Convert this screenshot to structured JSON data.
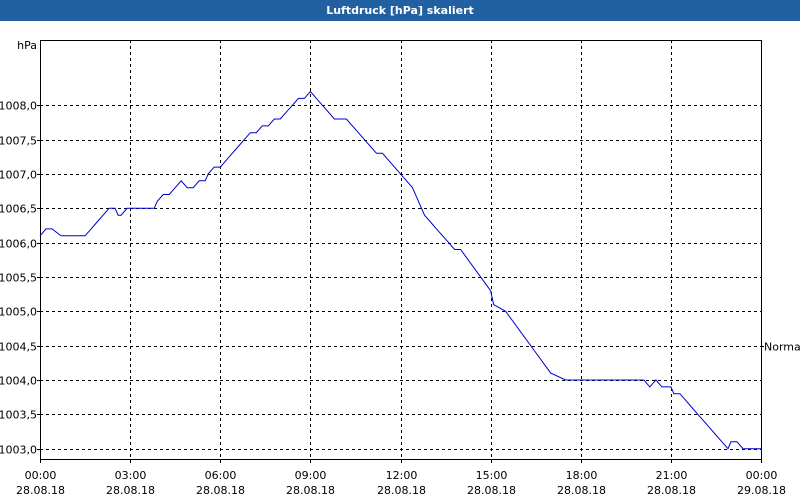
{
  "window": {
    "title": "Luftdruck [hPa] skaliert"
  },
  "chart_data": {
    "type": "line",
    "title": "Luftdruck [hPa] skaliert",
    "ylabel": "hPa",
    "xlabel": "",
    "ylim": [
      1002.85,
      1008.95
    ],
    "xlim": [
      0,
      24
    ],
    "yticks": [
      {
        "value": 1003.0,
        "label": "1003,0"
      },
      {
        "value": 1003.5,
        "label": "1003,5"
      },
      {
        "value": 1004.0,
        "label": "1004,0"
      },
      {
        "value": 1004.5,
        "label": "1004,5"
      },
      {
        "value": 1005.0,
        "label": "1005,0"
      },
      {
        "value": 1005.5,
        "label": "1005,5"
      },
      {
        "value": 1006.0,
        "label": "1006,0"
      },
      {
        "value": 1006.5,
        "label": "1006,5"
      },
      {
        "value": 1007.0,
        "label": "1007,0"
      },
      {
        "value": 1007.5,
        "label": "1007,5"
      },
      {
        "value": 1008.0,
        "label": "1008,0"
      }
    ],
    "xticks": [
      {
        "value": 0,
        "time": "00:00",
        "date": "28.08.18"
      },
      {
        "value": 3,
        "time": "03:00",
        "date": "28.08.18"
      },
      {
        "value": 6,
        "time": "06:00",
        "date": "28.08.18"
      },
      {
        "value": 9,
        "time": "09:00",
        "date": "28.08.18"
      },
      {
        "value": 12,
        "time": "12:00",
        "date": "28.08.18"
      },
      {
        "value": 15,
        "time": "15:00",
        "date": "28.08.18"
      },
      {
        "value": 18,
        "time": "18:00",
        "date": "28.08.18"
      },
      {
        "value": 21,
        "time": "21:00",
        "date": "28.08.18"
      },
      {
        "value": 24,
        "time": "00:00",
        "date": "29.08.18"
      }
    ],
    "grid": true,
    "reference": {
      "label": "Normal",
      "value": 1004.5
    },
    "series": [
      {
        "color": "#0000cc",
        "x": [
          0,
          0.2,
          0.4,
          0.7,
          0.8,
          1.5,
          1.7,
          1.9,
          2.1,
          2.3,
          2.5,
          2.6,
          2.7,
          2.9,
          3.0,
          3.2,
          3.4,
          3.6,
          3.8,
          3.9,
          4.1,
          4.3,
          4.5,
          4.7,
          4.9,
          5.1,
          5.3,
          5.5,
          5.6,
          5.8,
          6.0,
          6.2,
          6.4,
          6.6,
          6.8,
          7.0,
          7.2,
          7.4,
          7.6,
          7.8,
          8.0,
          8.2,
          8.4,
          8.6,
          8.8,
          9.0,
          9.2,
          9.4,
          9.6,
          9.8,
          10.0,
          10.2,
          10.4,
          10.6,
          10.8,
          11.0,
          11.2,
          11.4,
          11.6,
          11.8,
          12.0,
          12.2,
          12.4,
          12.6,
          12.8,
          13.0,
          13.2,
          13.4,
          13.6,
          13.8,
          14.0,
          14.5,
          15.0,
          15.1,
          15.5,
          16.0,
          16.5,
          17.0,
          17.5,
          18.0,
          18.5,
          19.0,
          19.5,
          20.0,
          20.1,
          20.3,
          20.5,
          20.7,
          20.9,
          21.0,
          21.1,
          21.3,
          21.5,
          21.7,
          21.9,
          22.1,
          22.3,
          22.5,
          22.7,
          22.9,
          23.0,
          23.2,
          23.4,
          23.6,
          23.8,
          24.0
        ],
        "values": [
          1006.1,
          1006.2,
          1006.2,
          1006.1,
          1006.1,
          1006.1,
          1006.2,
          1006.3,
          1006.4,
          1006.5,
          1006.5,
          1006.4,
          1006.4,
          1006.5,
          1006.5,
          1006.5,
          1006.5,
          1006.5,
          1006.5,
          1006.6,
          1006.7,
          1006.7,
          1006.8,
          1006.9,
          1006.8,
          1006.8,
          1006.9,
          1006.9,
          1007.0,
          1007.1,
          1007.1,
          1007.2,
          1007.3,
          1007.4,
          1007.5,
          1007.6,
          1007.6,
          1007.7,
          1007.7,
          1007.8,
          1007.8,
          1007.9,
          1008.0,
          1008.1,
          1008.1,
          1008.2,
          1008.1,
          1008.0,
          1007.9,
          1007.8,
          1007.8,
          1007.8,
          1007.7,
          1007.6,
          1007.5,
          1007.4,
          1007.3,
          1007.3,
          1007.2,
          1007.1,
          1007.0,
          1006.9,
          1006.8,
          1006.6,
          1006.4,
          1006.3,
          1006.2,
          1006.1,
          1006.0,
          1005.9,
          1005.9,
          1005.6,
          1005.3,
          1005.1,
          1005.0,
          1004.7,
          1004.4,
          1004.1,
          1004.0,
          1004.0,
          1004.0,
          1004.0,
          1004.0,
          1004.0,
          1004.0,
          1003.9,
          1004.0,
          1003.9,
          1003.9,
          1003.9,
          1003.8,
          1003.8,
          1003.7,
          1003.6,
          1003.5,
          1003.4,
          1003.3,
          1003.2,
          1003.1,
          1003.0,
          1003.1,
          1003.1,
          1003.0,
          1003.0,
          1003.0,
          1003.0
        ]
      }
    ]
  }
}
